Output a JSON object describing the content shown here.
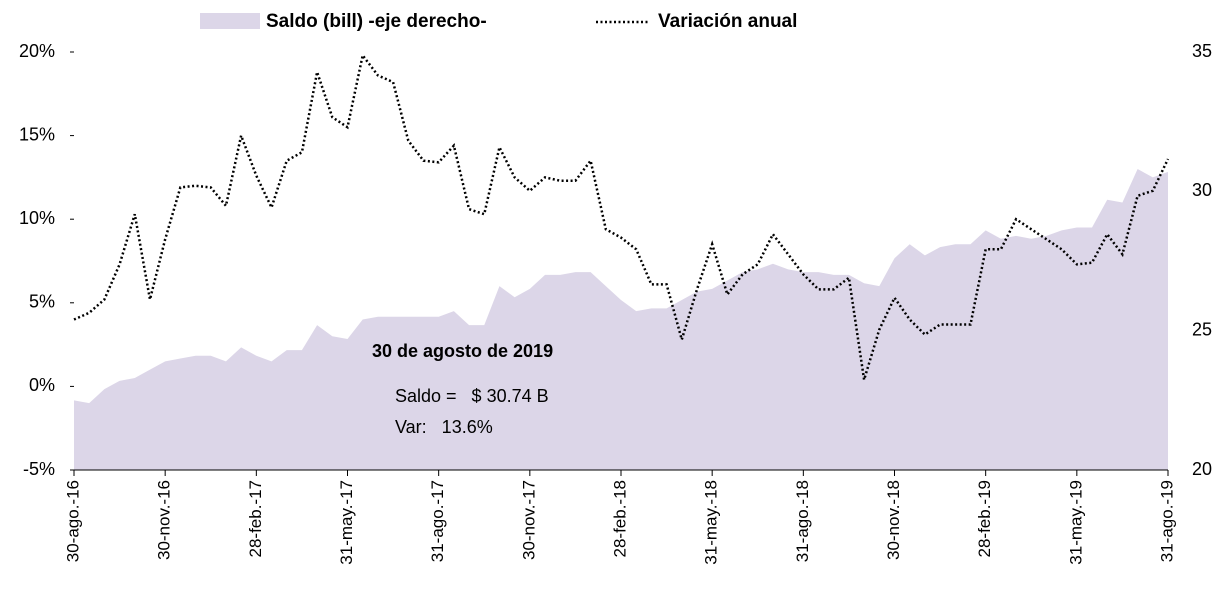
{
  "chart_data": {
    "type": "line",
    "categories": [
      "30-ago.-16",
      null,
      null,
      null,
      null,
      null,
      "30-nov.-16",
      null,
      null,
      null,
      null,
      null,
      "28-feb.-17",
      null,
      null,
      null,
      null,
      null,
      "31-may.-17",
      null,
      null,
      null,
      null,
      null,
      "31-ago.-17",
      null,
      null,
      null,
      null,
      null,
      "30-nov.-17",
      null,
      null,
      null,
      null,
      null,
      "28-feb.-18",
      null,
      null,
      null,
      null,
      null,
      "31-may.-18",
      null,
      null,
      null,
      null,
      null,
      "31-ago.-18",
      null,
      null,
      null,
      null,
      null,
      "30-nov.-18",
      null,
      null,
      null,
      null,
      null,
      "28-feb.-19",
      null,
      null,
      null,
      null,
      null,
      "31-may.-19",
      null,
      null,
      null,
      null,
      null,
      "31-ago.-19"
    ],
    "series": [
      {
        "name": "Saldo (bill) -eje derecho-",
        "kind": "area",
        "axis": "y2",
        "color": "#dcd6e8",
        "values": [
          22.5,
          22.4,
          22.9,
          23.2,
          23.3,
          23.6,
          23.9,
          24.0,
          24.1,
          24.1,
          23.9,
          24.4,
          24.1,
          23.9,
          24.3,
          24.3,
          25.2,
          24.8,
          24.7,
          25.4,
          25.5,
          25.5,
          25.5,
          25.5,
          25.5,
          25.7,
          25.2,
          25.2,
          26.6,
          26.2,
          26.5,
          27.0,
          27.0,
          27.1,
          27.1,
          26.6,
          26.1,
          25.7,
          25.8,
          25.8,
          26.1,
          26.4,
          26.5,
          26.8,
          27.1,
          27.2,
          27.4,
          27.2,
          27.1,
          27.1,
          27.0,
          27.0,
          26.7,
          26.6,
          27.6,
          28.1,
          27.7,
          28.0,
          28.1,
          28.1,
          28.6,
          28.3,
          28.4,
          28.3,
          28.4,
          28.6,
          28.7,
          28.7,
          29.7,
          29.6,
          30.8,
          30.5,
          30.7
        ]
      },
      {
        "name": "Variación anual",
        "kind": "line",
        "axis": "y",
        "color": "#000000",
        "values": [
          4.0,
          4.4,
          5.2,
          7.3,
          10.3,
          5.2,
          8.8,
          11.9,
          12.0,
          11.9,
          10.8,
          15.0,
          12.6,
          10.7,
          13.5,
          14.0,
          18.8,
          16.1,
          15.5,
          19.8,
          18.6,
          18.2,
          14.7,
          13.5,
          13.4,
          14.4,
          10.6,
          10.3,
          14.3,
          12.5,
          11.7,
          12.5,
          12.3,
          12.3,
          13.5,
          9.4,
          8.9,
          8.2,
          6.1,
          6.1,
          2.8,
          5.8,
          8.5,
          5.5,
          6.7,
          7.3,
          9.1,
          7.9,
          6.7,
          5.8,
          5.8,
          6.5,
          0.4,
          3.4,
          5.3,
          4.0,
          3.1,
          3.7,
          3.7,
          3.7,
          8.2,
          8.2,
          10.0,
          9.4,
          8.8,
          8.2,
          7.3,
          7.4,
          9.1,
          7.9,
          11.4,
          11.7,
          13.6
        ]
      }
    ],
    "ylim": [
      -5,
      20
    ],
    "yticks": [
      {
        "value": -5,
        "label": "-5%"
      },
      {
        "value": 0,
        "label": "0%"
      },
      {
        "value": 5,
        "label": "5%"
      },
      {
        "value": 10,
        "label": "10%"
      },
      {
        "value": 15,
        "label": "15%"
      },
      {
        "value": 20,
        "label": "20%"
      }
    ],
    "y2lim": [
      20,
      35
    ],
    "y2ticks": [
      20,
      25,
      30,
      35
    ],
    "annotations": [
      "30 de agosto de 2019",
      "Saldo =   $ 30.74 B",
      "Var:   13.6%"
    ],
    "legend": "top"
  }
}
